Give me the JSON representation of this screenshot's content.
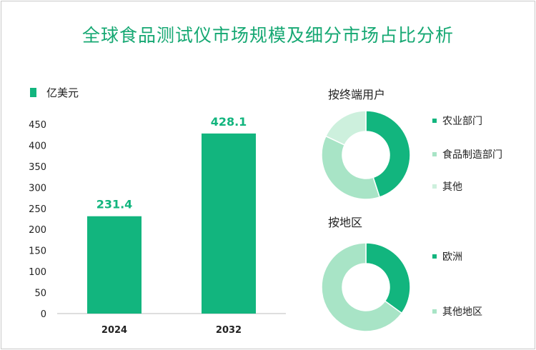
{
  "title": "全球食品测试仪市场规模及细分市场占比分析",
  "bar_unit": "亿美元",
  "pie1_title": "按终端用户",
  "pie2_title": "按地区",
  "colors": {
    "primary": "#12b57e",
    "mid": "#a8e4c6",
    "light": "#cdf0dd",
    "title": "#16a873"
  },
  "chart_data": [
    {
      "type": "bar",
      "categories": [
        "2024",
        "2032"
      ],
      "values": [
        231.4,
        428.1
      ],
      "ylabel": "亿美元",
      "ylim": [
        0,
        450
      ],
      "yticks": [
        0,
        50,
        100,
        150,
        200,
        250,
        300,
        350,
        400,
        450
      ],
      "grid": false
    },
    {
      "type": "pie",
      "title": "按终端用户",
      "labels": [
        "农业部门",
        "食品制造部门",
        "其他"
      ],
      "values": [
        45,
        37,
        18
      ],
      "colors": [
        "#12b57e",
        "#a8e4c6",
        "#cdf0dd"
      ],
      "donut": true
    },
    {
      "type": "pie",
      "title": "按地区",
      "labels": [
        "欧洲",
        "其他地区"
      ],
      "values": [
        35,
        65
      ],
      "colors": [
        "#12b57e",
        "#a8e4c6"
      ],
      "donut": true
    }
  ]
}
